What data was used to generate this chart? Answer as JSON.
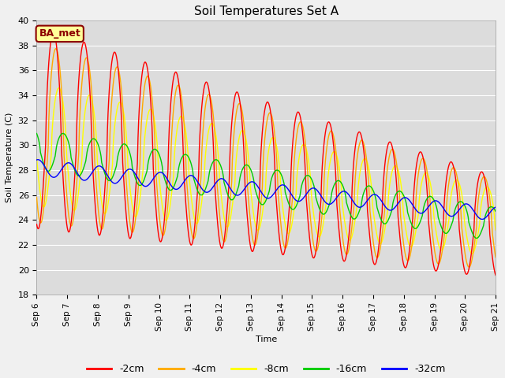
{
  "title": "Soil Temperatures Set A",
  "xlabel": "Time",
  "ylabel": "Soil Temperature (C)",
  "ylim": [
    18,
    40
  ],
  "annotation": "BA_met",
  "legend_labels": [
    "-2cm",
    "-4cm",
    "-8cm",
    "-16cm",
    "-32cm"
  ],
  "legend_colors": [
    "#ff0000",
    "#ffaa00",
    "#ffff00",
    "#00cc00",
    "#0000ff"
  ],
  "xtick_labels": [
    "Sep 6",
    "Sep 7",
    "Sep 8",
    "Sep 9",
    "Sep 10",
    "Sep 11",
    "Sep 12",
    "Sep 13",
    "Sep 14",
    "Sep 15",
    "Sep 16",
    "Sep 17",
    "Sep 18",
    "Sep 19",
    "Sep 20",
    "Sep 21"
  ],
  "figsize": [
    6.4,
    4.8
  ],
  "dpi": 100
}
